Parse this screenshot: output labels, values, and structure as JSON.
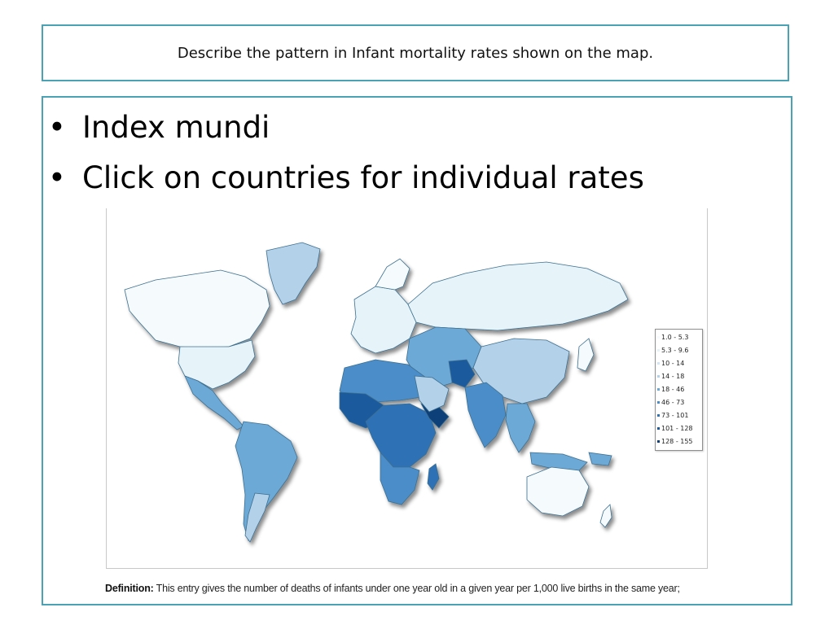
{
  "slide": {
    "title": "Describe the pattern in Infant mortality rates shown on the map.",
    "bullets": [
      "Index mundi",
      "Click on countries for individual rates"
    ]
  },
  "map": {
    "legend": [
      {
        "label": "1.0 - 5.3",
        "color": "#f5fafd"
      },
      {
        "label": "5.3 - 9.6",
        "color": "#e6f4fa"
      },
      {
        "label": "10 - 14",
        "color": "#d3e5f3"
      },
      {
        "label": "14 - 18",
        "color": "#b4d1ea"
      },
      {
        "label": "18 - 46",
        "color": "#6da9d6"
      },
      {
        "label": "46 - 73",
        "color": "#4b8dc9"
      },
      {
        "label": "73 - 101",
        "color": "#2f71b5"
      },
      {
        "label": "101 - 128",
        "color": "#1c5a9e"
      },
      {
        "label": "128 - 155",
        "color": "#0f3f78"
      }
    ],
    "definition_label": "Definition:",
    "definition_text": "This entry gives the number of deaths of infants under one year old in a given year per 1,000 live births in the same year;"
  }
}
